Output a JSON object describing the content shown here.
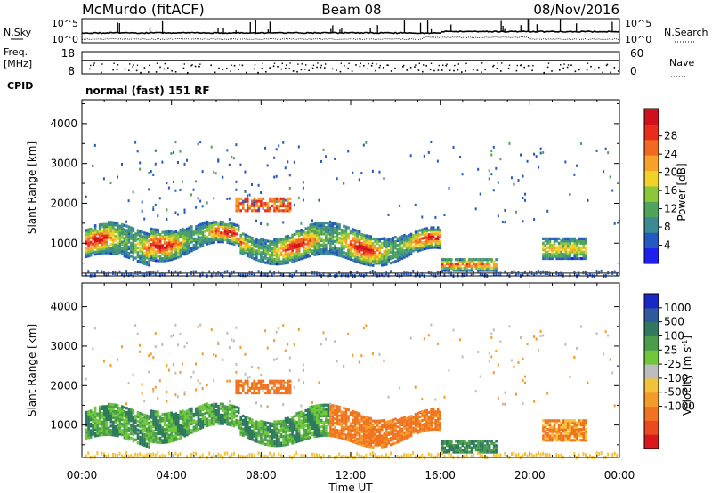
{
  "header": {
    "title": "McMurdo (fitACF)",
    "beam": "Beam 08",
    "date": "08/Nov/2016"
  },
  "strip_panels": {
    "nsky_label": "N.Sky",
    "nsearch_label": "N.Search",
    "noise_ticks": [
      "10^5",
      "10^0"
    ],
    "freq_label_1": "Freq.",
    "freq_label_2": "[MHz]",
    "freq_ticks": [
      "18",
      "8"
    ],
    "nave_label": "Nave",
    "nave_ticks": [
      "60",
      "0"
    ],
    "cpid_label": "CPID",
    "cpid_text": "normal (fast) 151 RF"
  },
  "x_axis": {
    "label": "Time UT",
    "ticks": [
      "00:00",
      "04:00",
      "08:00",
      "12:00",
      "16:00",
      "20:00",
      "00:00"
    ]
  },
  "chart_data": [
    {
      "type": "heatmap",
      "quantity": "power",
      "ylabel": "Slant Range [km]",
      "yticks": [
        1000,
        2000,
        3000,
        4000
      ],
      "ylim": [
        180,
        4600
      ],
      "xlim_hours": [
        0,
        24
      ],
      "colorbar": {
        "label": "Power [dB]",
        "ticks": [
          "4",
          "8",
          "12",
          "16",
          "20",
          "24",
          "28"
        ],
        "colors": [
          "#1f1ff0",
          "#2559c2",
          "#3a8a8f",
          "#4fa35a",
          "#8cc63a",
          "#f0d22a",
          "#f7a22a",
          "#f06a22",
          "#e82d1f",
          "#d0101a"
        ]
      }
    },
    {
      "type": "heatmap",
      "quantity": "velocity",
      "ylabel": "Slant Range [km]",
      "yticks": [
        1000,
        2000,
        3000,
        4000
      ],
      "ylim": [
        180,
        4600
      ],
      "xlim_hours": [
        0,
        24
      ],
      "colorbar": {
        "label": "Velocity [m s^-1]",
        "ticks": [
          "1000",
          "500",
          "100",
          "25",
          "-25",
          "-100",
          "-500",
          "-1000"
        ],
        "colors": [
          "#1a28c8",
          "#2f5a9c",
          "#2f7a5e",
          "#4a9e4a",
          "#6ec83a",
          "#bdbdbd",
          "#f2c23a",
          "#f29a2a",
          "#f07420",
          "#ea4a1e",
          "#d8181a"
        ]
      }
    }
  ]
}
